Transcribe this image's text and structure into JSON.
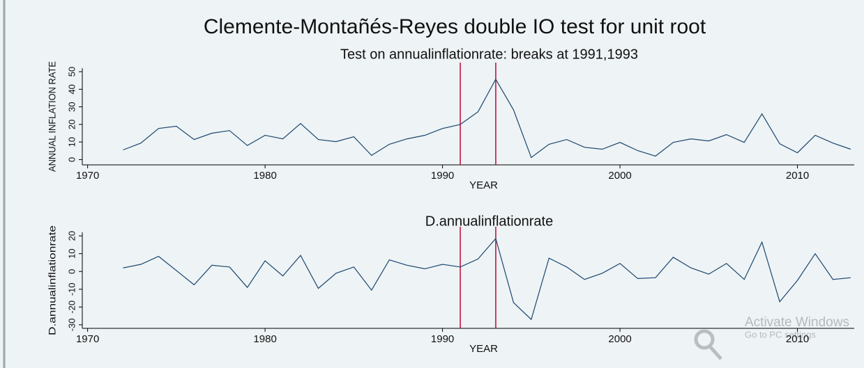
{
  "title": "Clemente-Montañés-Reyes double IO test for unit root",
  "watermark": {
    "title": "Activate Windows",
    "subtitle": "Go to PC settings"
  },
  "chart_data": [
    {
      "type": "line",
      "title": "Test on annualinflationrate: breaks at 1991,1993",
      "x_label": "YEAR",
      "y_label": "ANNUAL INFLATION RATE",
      "x": [
        1972,
        1973,
        1974,
        1975,
        1976,
        1977,
        1978,
        1979,
        1980,
        1981,
        1982,
        1983,
        1984,
        1985,
        1986,
        1987,
        1988,
        1989,
        1990,
        1991,
        1992,
        1993,
        1994,
        1995,
        1996,
        1997,
        1998,
        1999,
        2000,
        2001,
        2002,
        2003,
        2004,
        2005,
        2006,
        2007,
        2008,
        2009,
        2010,
        2011,
        2012,
        2013
      ],
      "values": [
        5.5,
        9.4,
        17.7,
        19,
        11.4,
        15,
        16.5,
        8,
        13.8,
        11.8,
        20.5,
        11.4,
        10.2,
        13,
        2.4,
        8.7,
        11.8,
        13.8,
        17.7,
        20,
        27.2,
        45.7,
        28.3,
        1.2,
        8.7,
        11.4,
        7,
        5.9,
        9.8,
        5.1,
        2,
        9.8,
        11.8,
        10.6,
        14.2,
        9.8,
        26,
        9,
        3.9,
        13.8,
        9.4,
        5.9
      ],
      "color": "#1a476f",
      "breaks": [
        1991,
        1993
      ],
      "break_color": "#c10534",
      "xlim": [
        1969.7,
        2013.2
      ],
      "xticks": [
        1970,
        1980,
        1990,
        2000,
        2010
      ],
      "ylim": [
        -3,
        52
      ],
      "yticks": [
        0,
        10,
        20,
        30,
        40,
        50
      ]
    },
    {
      "type": "line",
      "title": "D.annualinflationrate",
      "x_label": "YEAR",
      "y_label": "D.annualinflationrate",
      "x": [
        1972,
        1973,
        1974,
        1975,
        1976,
        1977,
        1978,
        1979,
        1980,
        1981,
        1982,
        1983,
        1984,
        1985,
        1986,
        1987,
        1988,
        1989,
        1990,
        1991,
        1992,
        1993,
        1994,
        1995,
        1996,
        1997,
        1998,
        1999,
        2000,
        2001,
        2002,
        2003,
        2004,
        2005,
        2006,
        2007,
        2008,
        2009,
        2010,
        2011,
        2012,
        2013
      ],
      "values": [
        2,
        4,
        8.5,
        0.5,
        -7.5,
        3.5,
        2.5,
        -9,
        6,
        -2.5,
        9,
        -9.5,
        -1,
        2.5,
        -10.5,
        6.5,
        3.5,
        1.5,
        4,
        2.5,
        7,
        18.5,
        -17.5,
        -27,
        7.5,
        2.5,
        -4.5,
        -1,
        4.5,
        -4,
        -3.5,
        8,
        2,
        -1.5,
        4.5,
        -4.5,
        16.5,
        -17,
        -5,
        10,
        -4.5,
        -3.5
      ],
      "color": "#1a476f",
      "breaks": [
        1991,
        1993
      ],
      "break_color": "#c10534",
      "xlim": [
        1969.7,
        2013.2
      ],
      "xticks": [
        1970,
        1980,
        1990,
        2000,
        2010
      ],
      "ylim": [
        -32,
        22
      ],
      "yticks": [
        -30,
        -20,
        -10,
        0,
        10,
        20
      ]
    }
  ]
}
